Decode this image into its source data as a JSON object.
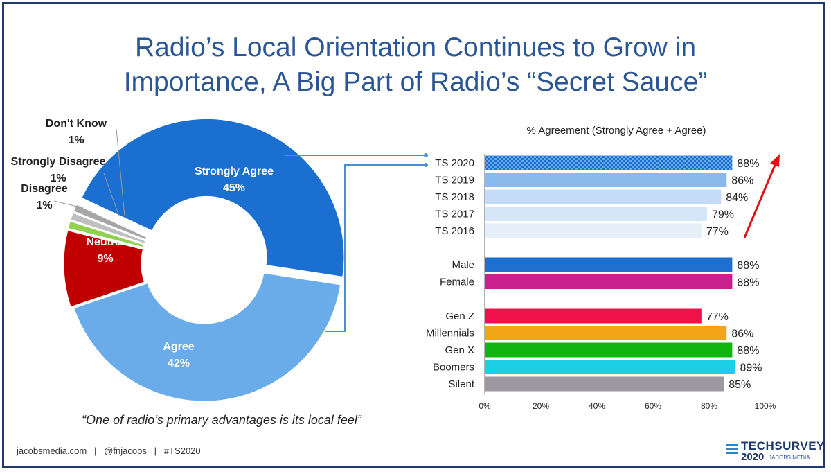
{
  "title_line1": "Radio’s Local Orientation Continues to Grow in",
  "title_line2": "Importance, A Big Part of Radio’s “Secret Sauce”",
  "quote": "“One of radio’s primary advantages is its local feel”",
  "footer": "jacobsmedia.com   |   @fnjacobs   |   #TS2020",
  "logo": {
    "name": "TECHSURVEY",
    "year": "2020",
    "sub": "JACOBS MEDIA"
  },
  "chart_data": [
    {
      "type": "pie",
      "donut": true,
      "slices": [
        {
          "label": "Strongly Agree",
          "value": 45,
          "display": "45%",
          "color": "#1a6fd0"
        },
        {
          "label": "Agree",
          "value": 42,
          "display": "42%",
          "color": "#6aabea"
        },
        {
          "label": "Neutral",
          "value": 9,
          "display": "9%",
          "color": "#c00000"
        },
        {
          "label": "Disagree",
          "value": 1,
          "display": "1%",
          "color": "#92d050"
        },
        {
          "label": "Strongly Disagree",
          "value": 1,
          "display": "1%",
          "color": "#bfbfbf"
        },
        {
          "label": "Don't Know",
          "value": 1,
          "display": "1%",
          "color": "#a6a6a6"
        }
      ]
    },
    {
      "type": "bar",
      "orientation": "horizontal",
      "title": "% Agreement (Strongly Agree + Agree)",
      "xlim": [
        0,
        100
      ],
      "xticks": [
        "0%",
        "20%",
        "40%",
        "60%",
        "80%",
        "100%"
      ],
      "groups": [
        {
          "bars": [
            {
              "label": "TS 2020",
              "value": 88,
              "display": "88%",
              "color": "#1a6fd0",
              "pattern": true
            },
            {
              "label": "TS 2019",
              "value": 86,
              "display": "86%",
              "color": "#8ab9ee"
            },
            {
              "label": "TS 2018",
              "value": 84,
              "display": "84%",
              "color": "#c3dbf6"
            },
            {
              "label": "TS 2017",
              "value": 79,
              "display": "79%",
              "color": "#d6e6f9"
            },
            {
              "label": "TS 2016",
              "value": 77,
              "display": "77%",
              "color": "#e6eef9"
            }
          ]
        },
        {
          "bars": [
            {
              "label": "Male",
              "value": 88,
              "display": "88%",
              "color": "#1f6fd0"
            },
            {
              "label": "Female",
              "value": 88,
              "display": "88%",
              "color": "#c9208e"
            }
          ]
        },
        {
          "bars": [
            {
              "label": "Gen Z",
              "value": 77,
              "display": "77%",
              "color": "#f0104a"
            },
            {
              "label": "Millennials",
              "value": 86,
              "display": "86%",
              "color": "#f2a516"
            },
            {
              "label": "Gen X",
              "value": 88,
              "display": "88%",
              "color": "#10b510"
            },
            {
              "label": "Boomers",
              "value": 89,
              "display": "89%",
              "color": "#1ccfe6"
            },
            {
              "label": "Silent",
              "value": 85,
              "display": "85%",
              "color": "#9e99a0"
            }
          ]
        }
      ]
    }
  ]
}
